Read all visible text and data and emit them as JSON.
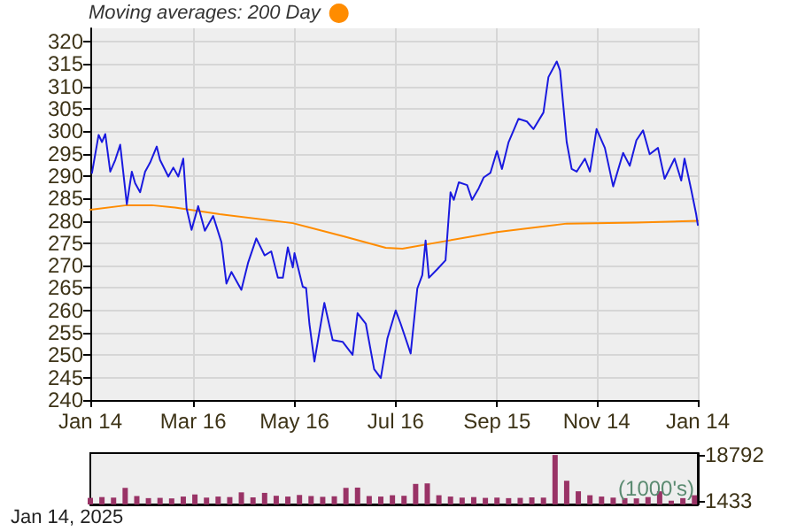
{
  "chart_data": [
    {
      "type": "line",
      "legend_title": "Moving averages:",
      "legend": "top left",
      "grid": true,
      "marker": "none",
      "line_style": "solid",
      "xlim": [
        "2024-01-14",
        "2025-01-14"
      ],
      "xticks": [
        {
          "value": "2024-01-14",
          "label": "Jan 14"
        },
        {
          "value": "2024-03-16",
          "label": "Mar 16"
        },
        {
          "value": "2024-05-16",
          "label": "May 16"
        },
        {
          "value": "2024-07-16",
          "label": "Jul 16"
        },
        {
          "value": "2024-09-15",
          "label": "Sep 15"
        },
        {
          "value": "2024-11-14",
          "label": "Nov 14"
        },
        {
          "value": "2025-01-14",
          "label": "Jan 14"
        }
      ],
      "ylim": [
        240,
        323
      ],
      "yticks": [
        240,
        245,
        250,
        255,
        260,
        265,
        270,
        275,
        280,
        285,
        290,
        295,
        300,
        305,
        310,
        315,
        320
      ],
      "series": [
        {
          "color": "#1a1adf",
          "x": [
            "2024-01-15",
            "2024-01-19",
            "2024-01-21",
            "2024-01-23",
            "2024-01-26",
            "2024-01-29",
            "2024-02-01",
            "2024-02-05",
            "2024-02-08",
            "2024-02-10",
            "2024-02-13",
            "2024-02-16",
            "2024-02-19",
            "2024-02-23",
            "2024-02-25",
            "2024-03-01",
            "2024-03-04",
            "2024-03-07",
            "2024-03-10",
            "2024-03-12",
            "2024-03-15",
            "2024-03-19",
            "2024-03-23",
            "2024-03-28",
            "2024-04-02",
            "2024-04-05",
            "2024-04-08",
            "2024-04-14",
            "2024-04-18",
            "2024-04-23",
            "2024-04-28",
            "2024-05-02",
            "2024-05-06",
            "2024-05-09",
            "2024-05-12",
            "2024-05-15",
            "2024-05-16",
            "2024-05-21",
            "2024-05-23",
            "2024-05-25",
            "2024-05-28",
            "2024-06-03",
            "2024-06-08",
            "2024-06-14",
            "2024-06-20",
            "2024-06-23",
            "2024-06-28",
            "2024-07-03",
            "2024-07-07",
            "2024-07-11",
            "2024-07-16",
            "2024-07-19",
            "2024-07-25",
            "2024-07-29",
            "2024-08-01",
            "2024-08-03",
            "2024-08-05",
            "2024-08-10",
            "2024-08-15",
            "2024-08-18",
            "2024-08-20",
            "2024-08-23",
            "2024-08-28",
            "2024-08-31",
            "2024-09-04",
            "2024-09-07",
            "2024-09-11",
            "2024-09-15",
            "2024-09-18",
            "2024-09-22",
            "2024-09-28",
            "2024-10-03",
            "2024-10-07",
            "2024-10-13",
            "2024-10-16",
            "2024-10-21",
            "2024-10-23",
            "2024-10-27",
            "2024-10-30",
            "2024-11-02",
            "2024-11-07",
            "2024-11-10",
            "2024-11-14",
            "2024-11-19",
            "2024-11-24",
            "2024-11-30",
            "2024-12-04",
            "2024-12-08",
            "2024-12-12",
            "2024-12-16",
            "2024-12-21",
            "2024-12-25",
            "2024-12-31",
            "2025-01-04",
            "2025-01-06",
            "2025-01-10",
            "2025-01-13",
            "2025-01-14"
          ],
          "values": [
            290.7,
            299.2,
            297.6,
            299.4,
            291,
            293.6,
            297,
            283.7,
            291,
            288.4,
            286.4,
            291,
            293,
            296.6,
            293.6,
            289.9,
            291.9,
            289.9,
            293.9,
            282.8,
            278,
            283.3,
            277.8,
            281.1,
            275.2,
            266,
            268.6,
            264.6,
            270.6,
            276.1,
            272.3,
            273.2,
            267.3,
            267.3,
            274.1,
            269.6,
            272.8,
            265.3,
            265,
            257,
            248.6,
            261.7,
            253.4,
            253,
            250.1,
            259.4,
            257,
            246.9,
            244.9,
            253.8,
            260,
            257,
            250.4,
            264.9,
            267.9,
            275.6,
            267.3,
            269.2,
            271.2,
            286.4,
            284.7,
            288.6,
            288,
            284.7,
            287.3,
            289.7,
            290.7,
            295.6,
            291.6,
            297.6,
            302.8,
            302.2,
            300.5,
            304.2,
            312.1,
            315.6,
            313.6,
            297.6,
            291.6,
            291,
            293.9,
            291,
            300.5,
            296.3,
            287.7,
            295.2,
            292.3,
            298,
            300.2,
            294.9,
            296.3,
            289.4,
            293.9,
            289,
            293.9,
            287,
            281.5,
            279.1
          ]
        },
        {
          "name": "200 Day",
          "color": "#ff8c00",
          "x": [
            "2024-01-14",
            "2024-02-05",
            "2024-02-20",
            "2024-03-05",
            "2024-04-01",
            "2024-05-15",
            "2024-06-15",
            "2024-07-10",
            "2024-07-20",
            "2024-08-15",
            "2024-09-15",
            "2024-10-27",
            "2024-12-08",
            "2025-01-14"
          ],
          "values": [
            282.5,
            283.5,
            283.5,
            283,
            281.5,
            279.5,
            276.5,
            274,
            273.8,
            275.5,
            277.5,
            279.4,
            279.6,
            280
          ]
        }
      ]
    },
    {
      "type": "bar",
      "tick_labels": "y",
      "grid": false,
      "ylabel": "(1000's)",
      "annotations": [
        "Jan 14, 2025"
      ],
      "xlim": [
        "2024-01-14",
        "2025-01-14"
      ],
      "ylim": [
        0,
        19500
      ],
      "yticks": [
        1433,
        18792
      ],
      "series": [
        {
          "color": "#993366",
          "x": [
            "2024-01-14",
            "2024-01-21",
            "2024-01-28",
            "2024-02-04",
            "2024-02-11",
            "2024-02-18",
            "2024-02-25",
            "2024-03-03",
            "2024-03-10",
            "2024-03-17",
            "2024-03-24",
            "2024-03-31",
            "2024-04-07",
            "2024-04-14",
            "2024-04-21",
            "2024-04-28",
            "2024-05-05",
            "2024-05-12",
            "2024-05-19",
            "2024-05-26",
            "2024-06-02",
            "2024-06-09",
            "2024-06-16",
            "2024-06-23",
            "2024-06-30",
            "2024-07-07",
            "2024-07-14",
            "2024-07-21",
            "2024-07-28",
            "2024-08-04",
            "2024-08-11",
            "2024-08-18",
            "2024-08-25",
            "2024-09-01",
            "2024-09-08",
            "2024-09-15",
            "2024-09-22",
            "2024-09-29",
            "2024-10-06",
            "2024-10-13",
            "2024-10-20",
            "2024-10-27",
            "2024-11-03",
            "2024-11-10",
            "2024-11-17",
            "2024-11-24",
            "2024-12-01",
            "2024-12-08",
            "2024-12-15",
            "2024-12-22",
            "2024-12-29",
            "2025-01-05",
            "2025-01-12"
          ],
          "values": [
            2500,
            2800,
            2600,
            6300,
            3200,
            2400,
            2500,
            2300,
            3000,
            3800,
            2600,
            3000,
            2800,
            4600,
            2700,
            4400,
            3300,
            3000,
            3600,
            3200,
            2900,
            3100,
            6300,
            6400,
            3200,
            3000,
            3500,
            3300,
            7800,
            8000,
            3500,
            3000,
            2600,
            2800,
            2500,
            2600,
            2400,
            2500,
            2700,
            2600,
            18792,
            9000,
            5000,
            3500,
            3000,
            2600,
            2400,
            2300,
            2800,
            5000,
            1433,
            2400,
            3500
          ]
        }
      ]
    }
  ]
}
